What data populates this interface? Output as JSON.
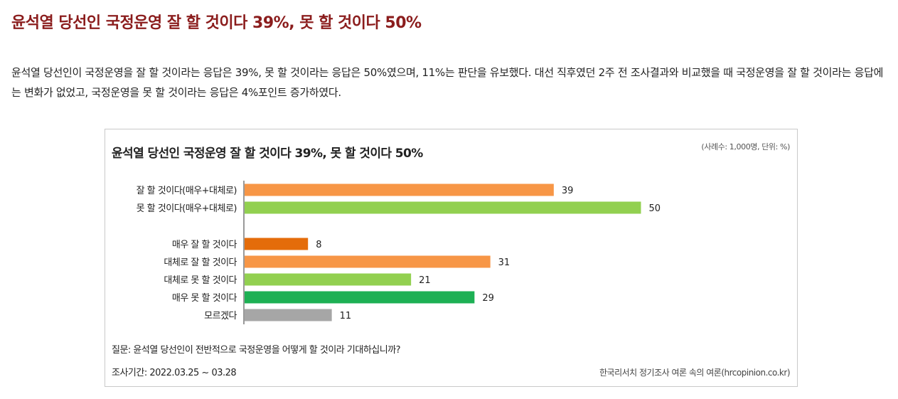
{
  "article": {
    "headline": "윤석열 당선인 국정운영 잘 할 것이다 39%, 못 할 것이다 50%",
    "paragraph": "윤석열 당선인이 국정운영을 잘 할 것이라는 응답은 39%, 못 할 것이라는 응답은 50%였으며, 11%는 판단을 유보했다. 대선 직후였던 2주 전 조사결과와 비교했을 때 국정운영을 잘 할 것이라는 응답에는 변화가 없었고, 국정운영을 못 할 것이라는 응답은 4%포인트 증가하였다."
  },
  "chart_data": {
    "type": "bar",
    "orientation": "horizontal",
    "title": "윤석열 당선인 국정운영 잘 할 것이다 39%, 못 할 것이다 50%",
    "unit_note": "(사례수: 1,000명, 단위: %)",
    "categories": [
      "잘 할 것이다(매우+대체로)",
      "못 할 것이다(매우+대체로)",
      "매우 잘 할 것이다",
      "대체로 잘 할 것이다",
      "대체로 못 할 것이다",
      "매우 못 할 것이다",
      "모르겠다"
    ],
    "values": [
      39,
      50,
      8,
      31,
      21,
      29,
      11
    ],
    "groups": [
      [
        0,
        1
      ],
      [
        2,
        3,
        4,
        5,
        6
      ]
    ],
    "colors": [
      "#f79646",
      "#92d050",
      "#e46c0a",
      "#f79646",
      "#92d050",
      "#1db054",
      "#a6a6a6"
    ],
    "xlim": [
      0,
      50
    ],
    "grid": false,
    "legend": "none",
    "question": "질문: 윤석열 당선인이 전반적으로 국정운영을 어떻게 할 것이라 기대하십니까?",
    "period": "조사기간: 2022.03.25 ~ 03.28",
    "source": "한국리서치 정기조사 여론 속의 여론(hrcopinion.co.kr)"
  }
}
